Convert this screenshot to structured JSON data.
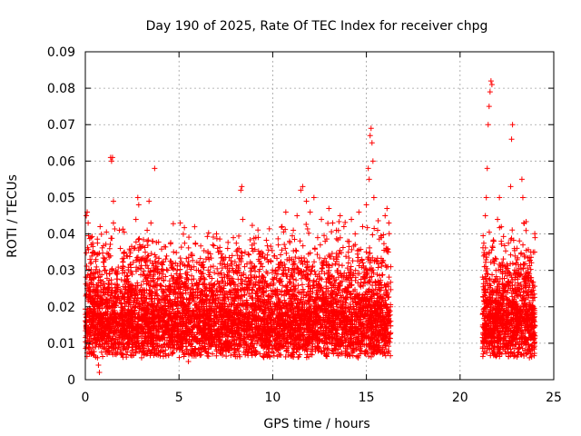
{
  "chart_data": {
    "type": "scatter",
    "title": "Day 190 of 2025, Rate Of TEC Index for receiver chpg",
    "xlabel": "GPS time / hours",
    "ylabel": "ROTI / TECUs",
    "xlim": [
      0,
      25
    ],
    "ylim": [
      0,
      0.09
    ],
    "xticks": [
      0,
      5,
      10,
      15,
      20,
      25
    ],
    "yticks": [
      0,
      0.01,
      0.02,
      0.03,
      0.04,
      0.05,
      0.06,
      0.07,
      0.08,
      0.09
    ],
    "xtick_labels": [
      "0",
      "5",
      "10",
      "15",
      "20",
      "25"
    ],
    "ytick_labels": [
      "0",
      "0.01",
      "0.02",
      "0.03",
      "0.04",
      "0.05",
      "0.06",
      "0.07",
      "0.08",
      "0.09"
    ],
    "grid": true,
    "marker": "+",
    "marker_color": "#ff0000",
    "series": [
      {
        "name": "ROTI",
        "points": [
          [
            0.05,
            0.012
          ],
          [
            0.05,
            0.045
          ],
          [
            0.1,
            0.046
          ],
          [
            0.15,
            0.043
          ],
          [
            0.2,
            0.018
          ],
          [
            0.25,
            0.033
          ],
          [
            0.3,
            0.039
          ],
          [
            0.35,
            0.029
          ],
          [
            0.4,
            0.035
          ],
          [
            0.45,
            0.015
          ],
          [
            0.5,
            0.022
          ],
          [
            0.55,
            0.009
          ],
          [
            0.6,
            0.026
          ],
          [
            0.65,
            0.006
          ],
          [
            0.7,
            0.004
          ],
          [
            0.75,
            0.002
          ],
          [
            0.8,
            0.018
          ],
          [
            0.9,
            0.011
          ],
          [
            1.0,
            0.014
          ],
          [
            1.1,
            0.021
          ],
          [
            1.2,
            0.008
          ],
          [
            1.3,
            0.017
          ],
          [
            1.35,
            0.061
          ],
          [
            1.4,
            0.06
          ],
          [
            1.45,
            0.061
          ],
          [
            1.5,
            0.049
          ],
          [
            1.5,
            0.043
          ],
          [
            1.6,
            0.016
          ],
          [
            1.7,
            0.011
          ],
          [
            1.8,
            0.009
          ],
          [
            1.9,
            0.013
          ],
          [
            2.0,
            0.03
          ],
          [
            2.1,
            0.021
          ],
          [
            2.2,
            0.034
          ],
          [
            2.3,
            0.027
          ],
          [
            2.4,
            0.012
          ],
          [
            2.5,
            0.025
          ],
          [
            2.6,
            0.036
          ],
          [
            2.7,
            0.044
          ],
          [
            2.8,
            0.05
          ],
          [
            2.85,
            0.048
          ],
          [
            2.9,
            0.037
          ],
          [
            3.0,
            0.019
          ],
          [
            3.1,
            0.027
          ],
          [
            3.2,
            0.035
          ],
          [
            3.3,
            0.041
          ],
          [
            3.4,
            0.049
          ],
          [
            3.5,
            0.043
          ],
          [
            3.6,
            0.038
          ],
          [
            3.7,
            0.058
          ],
          [
            3.75,
            0.032
          ],
          [
            3.8,
            0.02
          ],
          [
            3.9,
            0.008
          ],
          [
            4.0,
            0.015
          ],
          [
            4.2,
            0.022
          ],
          [
            4.4,
            0.03
          ],
          [
            4.6,
            0.032
          ],
          [
            4.8,
            0.018
          ],
          [
            5.0,
            0.026
          ],
          [
            5.2,
            0.01
          ],
          [
            5.4,
            0.028
          ],
          [
            5.5,
            0.005
          ],
          [
            5.6,
            0.024
          ],
          [
            5.8,
            0.031
          ],
          [
            6.0,
            0.015
          ],
          [
            6.2,
            0.029
          ],
          [
            6.4,
            0.012
          ],
          [
            6.6,
            0.033
          ],
          [
            6.8,
            0.037
          ],
          [
            7.0,
            0.04
          ],
          [
            7.1,
            0.035
          ],
          [
            7.3,
            0.02
          ],
          [
            7.5,
            0.031
          ],
          [
            7.7,
            0.014
          ],
          [
            7.9,
            0.039
          ],
          [
            8.0,
            0.025
          ],
          [
            8.2,
            0.036
          ],
          [
            8.3,
            0.052
          ],
          [
            8.35,
            0.053
          ],
          [
            8.4,
            0.044
          ],
          [
            8.5,
            0.031
          ],
          [
            8.7,
            0.018
          ],
          [
            8.9,
            0.036
          ],
          [
            9.1,
            0.039
          ],
          [
            9.3,
            0.017
          ],
          [
            9.5,
            0.028
          ],
          [
            9.7,
            0.033
          ],
          [
            9.9,
            0.02
          ],
          [
            10.1,
            0.034
          ],
          [
            10.3,
            0.037
          ],
          [
            10.5,
            0.042
          ],
          [
            10.7,
            0.046
          ],
          [
            10.9,
            0.038
          ],
          [
            11.1,
            0.041
          ],
          [
            11.3,
            0.045
          ],
          [
            11.5,
            0.052
          ],
          [
            11.6,
            0.053
          ],
          [
            11.8,
            0.049
          ],
          [
            12.0,
            0.046
          ],
          [
            12.2,
            0.05
          ],
          [
            12.4,
            0.039
          ],
          [
            12.6,
            0.044
          ],
          [
            12.8,
            0.038
          ],
          [
            13.0,
            0.047
          ],
          [
            13.2,
            0.043
          ],
          [
            13.4,
            0.041
          ],
          [
            13.6,
            0.045
          ],
          [
            13.8,
            0.042
          ],
          [
            14.0,
            0.038
          ],
          [
            14.2,
            0.044
          ],
          [
            14.4,
            0.04
          ],
          [
            14.6,
            0.046
          ],
          [
            14.8,
            0.042
          ],
          [
            15.0,
            0.048
          ],
          [
            15.1,
            0.058
          ],
          [
            15.15,
            0.055
          ],
          [
            15.2,
            0.067
          ],
          [
            15.25,
            0.069
          ],
          [
            15.3,
            0.065
          ],
          [
            15.35,
            0.06
          ],
          [
            15.4,
            0.05
          ],
          [
            15.6,
            0.041
          ],
          [
            15.8,
            0.039
          ],
          [
            16.0,
            0.045
          ],
          [
            16.1,
            0.047
          ],
          [
            16.2,
            0.043
          ],
          [
            16.3,
            0.031
          ],
          [
            21.25,
            0.018
          ],
          [
            21.3,
            0.031
          ],
          [
            21.35,
            0.045
          ],
          [
            21.4,
            0.05
          ],
          [
            21.45,
            0.058
          ],
          [
            21.5,
            0.07
          ],
          [
            21.55,
            0.075
          ],
          [
            21.6,
            0.079
          ],
          [
            21.65,
            0.082
          ],
          [
            21.7,
            0.081
          ],
          [
            21.8,
            0.038
          ],
          [
            22.0,
            0.044
          ],
          [
            22.1,
            0.05
          ],
          [
            22.2,
            0.038
          ],
          [
            22.4,
            0.031
          ],
          [
            22.6,
            0.027
          ],
          [
            22.7,
            0.053
          ],
          [
            22.75,
            0.066
          ],
          [
            22.8,
            0.07
          ],
          [
            22.9,
            0.036
          ],
          [
            23.1,
            0.029
          ],
          [
            23.3,
            0.055
          ],
          [
            23.35,
            0.05
          ],
          [
            23.4,
            0.043
          ],
          [
            23.5,
            0.022
          ],
          [
            23.7,
            0.018
          ],
          [
            23.8,
            0.028
          ],
          [
            23.9,
            0.035
          ],
          [
            24.0,
            0.039
          ],
          [
            24.0,
            0.012
          ]
        ],
        "dense_bands": [
          {
            "x_start": 0.0,
            "x_end": 16.3,
            "y_min": 0.004,
            "y_max": 0.03
          },
          {
            "x_start": 21.2,
            "x_end": 24.0,
            "y_min": 0.004,
            "y_max": 0.03
          }
        ]
      }
    ]
  }
}
